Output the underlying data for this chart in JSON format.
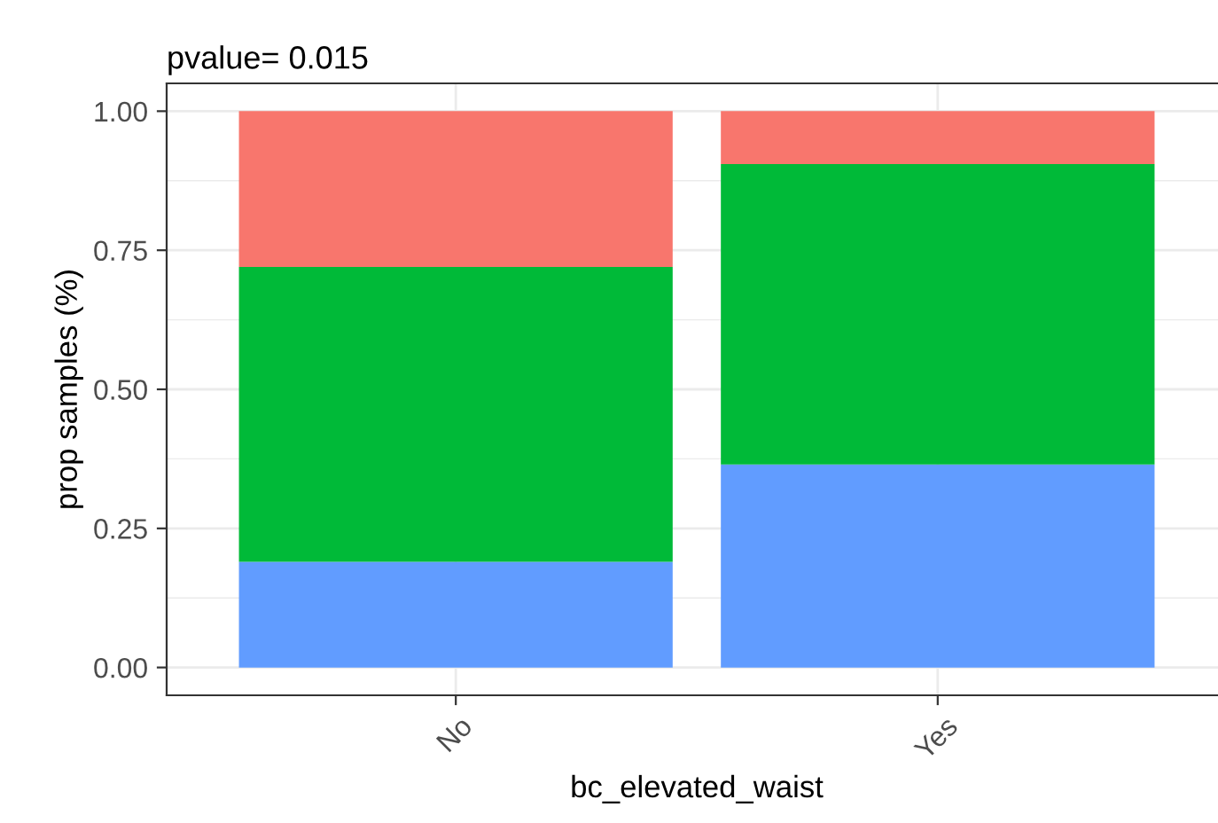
{
  "chart_data": {
    "type": "bar",
    "title": "pvalue= 0.015",
    "xlabel": "bc_elevated_waist",
    "ylabel": "prop samples (%)",
    "categories": [
      "No",
      "Yes"
    ],
    "stacked": true,
    "series": [
      {
        "color": "#619cff",
        "values": [
          0.19,
          0.365
        ]
      },
      {
        "color": "#00ba38",
        "values": [
          0.53,
          0.54
        ]
      },
      {
        "color": "#f8766d",
        "values": [
          0.28,
          0.095
        ]
      }
    ],
    "ylim": [
      -0.05,
      1.05
    ],
    "yticks": [
      {
        "value": 0,
        "label": "0.00"
      },
      {
        "value": 0.25,
        "label": "0.25"
      },
      {
        "value": 0.5,
        "label": "0.50"
      },
      {
        "value": 0.75,
        "label": "0.75"
      },
      {
        "value": 1,
        "label": "1.00"
      }
    ],
    "grid": true,
    "legend": false
  }
}
